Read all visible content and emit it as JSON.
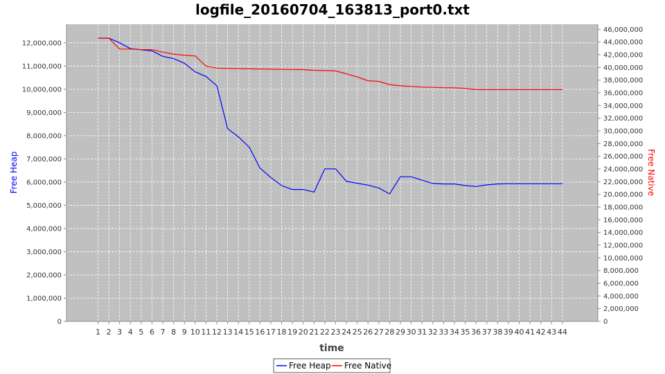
{
  "chart_data": {
    "type": "line",
    "title": "logfile_20160704_163813_port0.txt",
    "xlabel": "time",
    "ylabel_left": "Free Heap",
    "ylabel_right": "Free Native",
    "x": [
      1,
      2,
      3,
      4,
      5,
      6,
      7,
      8,
      9,
      10,
      11,
      12,
      13,
      14,
      15,
      16,
      17,
      18,
      19,
      20,
      21,
      22,
      23,
      24,
      25,
      26,
      27,
      28,
      29,
      30,
      31,
      32,
      33,
      34,
      35,
      36,
      37,
      38,
      39,
      40,
      41,
      42,
      43,
      44
    ],
    "ylim_left": [
      0,
      12800000
    ],
    "ylim_right": [
      0,
      46800000
    ],
    "yticks_left": [
      0,
      1000000,
      2000000,
      3000000,
      4000000,
      5000000,
      6000000,
      7000000,
      8000000,
      9000000,
      10000000,
      11000000,
      12000000
    ],
    "yticks_left_labels": [
      "0",
      "1,000,000",
      "2,000,000",
      "3,000,000",
      "4,000,000",
      "5,000,000",
      "6,000,000",
      "7,000,000",
      "8,000,000",
      "9,000,000",
      "10,000,000",
      "11,000,000",
      "12,000,000"
    ],
    "yticks_right": [
      0,
      2000000,
      4000000,
      6000000,
      8000000,
      10000000,
      12000000,
      14000000,
      16000000,
      18000000,
      20000000,
      22000000,
      24000000,
      26000000,
      28000000,
      30000000,
      32000000,
      34000000,
      36000000,
      38000000,
      40000000,
      42000000,
      44000000,
      46000000
    ],
    "yticks_right_labels": [
      "0",
      "2,000,000",
      "4,000,000",
      "6,000,000",
      "8,000,000",
      "10,000,000",
      "12,000,000",
      "14,000,000",
      "16,000,000",
      "18,000,000",
      "20,000,000",
      "22,000,000",
      "24,000,000",
      "26,000,000",
      "28,000,000",
      "30,000,000",
      "32,000,000",
      "34,000,000",
      "36,000,000",
      "38,000,000",
      "40,000,000",
      "42,000,000",
      "44,000,000",
      "46,000,000"
    ],
    "grid": true,
    "legend_position": "bottom",
    "colors": {
      "plot_bg": "#c0c0c0",
      "grid": "#ffffff",
      "heap": "#0000ff",
      "native": "#ff0000"
    },
    "series": [
      {
        "name": "Free Heap",
        "axis": "left",
        "color": "#0000ff",
        "values": [
          12200000,
          12200000,
          12000000,
          11750000,
          11700000,
          11650000,
          11420000,
          11320000,
          11120000,
          10750000,
          10550000,
          10150000,
          8300000,
          7950000,
          7500000,
          6600000,
          6200000,
          5850000,
          5680000,
          5680000,
          5570000,
          6570000,
          6570000,
          6030000,
          5950000,
          5870000,
          5750000,
          5490000,
          6230000,
          6230000,
          6080000,
          5940000,
          5920000,
          5920000,
          5850000,
          5810000,
          5880000,
          5920000,
          5930000,
          5930000,
          5930000,
          5930000,
          5930000,
          5930000
        ]
      },
      {
        "name": "Free Native",
        "axis": "right",
        "color": "#ff0000",
        "values": [
          44600000,
          44600000,
          42900000,
          42900000,
          42800000,
          42800000,
          42400000,
          42100000,
          41900000,
          41800000,
          40200000,
          39900000,
          39850000,
          39800000,
          39780000,
          39750000,
          39720000,
          39700000,
          39680000,
          39650000,
          39550000,
          39500000,
          39450000,
          39000000,
          38500000,
          37900000,
          37800000,
          37300000,
          37100000,
          37000000,
          36900000,
          36850000,
          36800000,
          36780000,
          36700000,
          36500000,
          36500000,
          36500000,
          36500000,
          36500000,
          36500000,
          36500000,
          36500000,
          36500000
        ]
      }
    ]
  }
}
